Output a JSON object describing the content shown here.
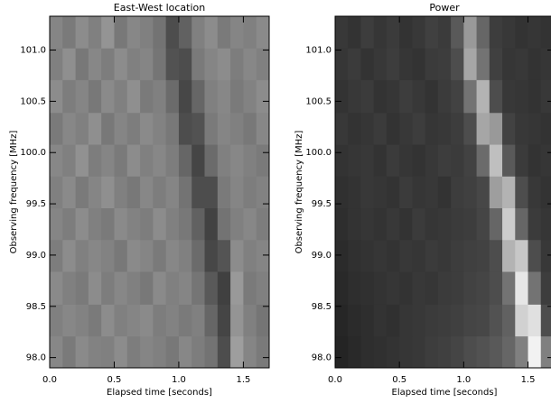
{
  "chart_data": [
    {
      "type": "heatmap",
      "title": "East-West location",
      "xlabel": "Elapsed time [seconds]",
      "ylabel": "Observing frequency [MHz]",
      "colormap": "gray",
      "xlim": [
        0,
        1.7
      ],
      "ylim": [
        97.9,
        101.33
      ],
      "xticks": [
        {
          "value": 0,
          "label": "0.0"
        },
        0.5,
        {
          "value": 1,
          "label": "1.0"
        },
        1.5
      ],
      "yticks": [
        {
          "value": 98,
          "label": "98.0"
        },
        98.5,
        {
          "value": 99,
          "label": "99.0"
        },
        99.5,
        {
          "value": 100,
          "label": "100.0"
        },
        100.5,
        {
          "value": 101,
          "label": "101.0"
        }
      ],
      "xbins": [
        0,
        0.1,
        0.2,
        0.3,
        0.4,
        0.5,
        0.6,
        0.7,
        0.8,
        0.9,
        1.0,
        1.1,
        1.2,
        1.3,
        1.4,
        1.5,
        1.6,
        1.7
      ],
      "ybins": [
        97.9,
        98.21,
        98.52,
        98.84,
        99.15,
        99.46,
        99.77,
        100.08,
        100.39,
        100.71,
        101.02,
        101.33
      ],
      "z": [
        [
          0.53,
          0.48,
          0.54,
          0.51,
          0.5,
          0.55,
          0.49,
          0.52,
          0.5,
          0.47,
          0.53,
          0.49,
          0.45,
          0.3,
          0.62,
          0.52,
          0.48
        ],
        [
          0.5,
          0.53,
          0.51,
          0.48,
          0.55,
          0.5,
          0.52,
          0.54,
          0.49,
          0.51,
          0.48,
          0.5,
          0.4,
          0.27,
          0.58,
          0.5,
          0.46
        ],
        [
          0.54,
          0.5,
          0.48,
          0.55,
          0.49,
          0.53,
          0.5,
          0.47,
          0.54,
          0.5,
          0.52,
          0.46,
          0.35,
          0.25,
          0.6,
          0.48,
          0.5
        ],
        [
          0.49,
          0.55,
          0.5,
          0.53,
          0.51,
          0.47,
          0.54,
          0.52,
          0.48,
          0.53,
          0.5,
          0.42,
          0.28,
          0.33,
          0.55,
          0.5,
          0.52
        ],
        [
          0.52,
          0.49,
          0.55,
          0.5,
          0.48,
          0.54,
          0.51,
          0.49,
          0.55,
          0.5,
          0.47,
          0.38,
          0.26,
          0.45,
          0.5,
          0.53,
          0.49
        ],
        [
          0.5,
          0.54,
          0.48,
          0.52,
          0.56,
          0.5,
          0.47,
          0.53,
          0.49,
          0.52,
          0.45,
          0.3,
          0.3,
          0.48,
          0.52,
          0.49,
          0.51
        ],
        [
          0.53,
          0.5,
          0.57,
          0.49,
          0.52,
          0.48,
          0.55,
          0.5,
          0.53,
          0.49,
          0.4,
          0.27,
          0.42,
          0.5,
          0.53,
          0.5,
          0.48
        ],
        [
          0.48,
          0.53,
          0.5,
          0.56,
          0.47,
          0.52,
          0.49,
          0.54,
          0.51,
          0.47,
          0.3,
          0.32,
          0.48,
          0.52,
          0.5,
          0.47,
          0.53
        ],
        [
          0.55,
          0.49,
          0.52,
          0.47,
          0.54,
          0.5,
          0.56,
          0.48,
          0.5,
          0.42,
          0.28,
          0.4,
          0.5,
          0.53,
          0.48,
          0.51,
          0.55
        ],
        [
          0.5,
          0.56,
          0.47,
          0.53,
          0.49,
          0.55,
          0.5,
          0.52,
          0.46,
          0.32,
          0.3,
          0.48,
          0.52,
          0.55,
          0.49,
          0.53,
          0.5
        ],
        [
          0.52,
          0.48,
          0.55,
          0.5,
          0.58,
          0.47,
          0.53,
          0.5,
          0.45,
          0.3,
          0.38,
          0.5,
          0.55,
          0.48,
          0.52,
          0.5,
          0.54
        ]
      ]
    },
    {
      "type": "heatmap",
      "title": "Power",
      "xlabel": "Elapsed time [seconds]",
      "ylabel": "Observing frequency [MHz]",
      "colormap": "gray",
      "xlim": [
        0,
        1.7
      ],
      "ylim": [
        97.9,
        101.33
      ],
      "xticks": [
        {
          "value": 0,
          "label": "0.0"
        },
        0.5,
        {
          "value": 1,
          "label": "1.0"
        },
        1.5
      ],
      "yticks": [
        {
          "value": 98,
          "label": "98.0"
        },
        98.5,
        {
          "value": 99,
          "label": "99.0"
        },
        99.5,
        {
          "value": 100,
          "label": "100.0"
        },
        100.5,
        {
          "value": 101,
          "label": "101.0"
        }
      ],
      "xbins": [
        0,
        0.1,
        0.2,
        0.3,
        0.4,
        0.5,
        0.6,
        0.7,
        0.8,
        0.9,
        1.0,
        1.1,
        1.2,
        1.3,
        1.4,
        1.5,
        1.6,
        1.7
      ],
      "ybins": [
        97.9,
        98.21,
        98.52,
        98.84,
        99.15,
        99.46,
        99.77,
        100.08,
        100.39,
        100.71,
        101.02,
        101.33
      ],
      "z": [
        [
          0.14,
          0.16,
          0.18,
          0.19,
          0.2,
          0.21,
          0.22,
          0.24,
          0.25,
          0.27,
          0.3,
          0.32,
          0.35,
          0.4,
          0.5,
          0.95,
          0.5
        ],
        [
          0.15,
          0.17,
          0.18,
          0.2,
          0.19,
          0.21,
          0.22,
          0.23,
          0.24,
          0.25,
          0.27,
          0.28,
          0.32,
          0.38,
          0.82,
          0.88,
          0.3
        ],
        [
          0.16,
          0.18,
          0.19,
          0.2,
          0.21,
          0.2,
          0.22,
          0.21,
          0.23,
          0.24,
          0.26,
          0.27,
          0.3,
          0.45,
          0.9,
          0.45,
          0.24
        ],
        [
          0.17,
          0.19,
          0.2,
          0.21,
          0.2,
          0.22,
          0.21,
          0.23,
          0.22,
          0.24,
          0.25,
          0.26,
          0.3,
          0.7,
          0.78,
          0.3,
          0.22
        ],
        [
          0.18,
          0.2,
          0.21,
          0.2,
          0.22,
          0.2,
          0.23,
          0.21,
          0.22,
          0.23,
          0.24,
          0.27,
          0.4,
          0.8,
          0.4,
          0.23,
          0.21
        ],
        [
          0.19,
          0.2,
          0.22,
          0.21,
          0.2,
          0.23,
          0.21,
          0.22,
          0.2,
          0.24,
          0.25,
          0.28,
          0.62,
          0.7,
          0.3,
          0.22,
          0.2
        ],
        [
          0.2,
          0.21,
          0.22,
          0.2,
          0.23,
          0.21,
          0.2,
          0.22,
          0.24,
          0.23,
          0.26,
          0.42,
          0.75,
          0.35,
          0.23,
          0.2,
          0.21
        ],
        [
          0.22,
          0.2,
          0.21,
          0.23,
          0.2,
          0.22,
          0.24,
          0.21,
          0.22,
          0.24,
          0.3,
          0.65,
          0.6,
          0.26,
          0.22,
          0.21,
          0.2
        ],
        [
          0.2,
          0.22,
          0.23,
          0.2,
          0.21,
          0.24,
          0.22,
          0.2,
          0.23,
          0.26,
          0.45,
          0.7,
          0.3,
          0.22,
          0.21,
          0.2,
          0.22
        ],
        [
          0.21,
          0.23,
          0.2,
          0.22,
          0.24,
          0.21,
          0.2,
          0.23,
          0.24,
          0.3,
          0.65,
          0.45,
          0.25,
          0.21,
          0.22,
          0.2,
          0.21
        ],
        [
          0.22,
          0.2,
          0.24,
          0.21,
          0.23,
          0.2,
          0.22,
          0.25,
          0.23,
          0.35,
          0.6,
          0.4,
          0.24,
          0.22,
          0.2,
          0.21,
          0.2
        ]
      ]
    }
  ]
}
